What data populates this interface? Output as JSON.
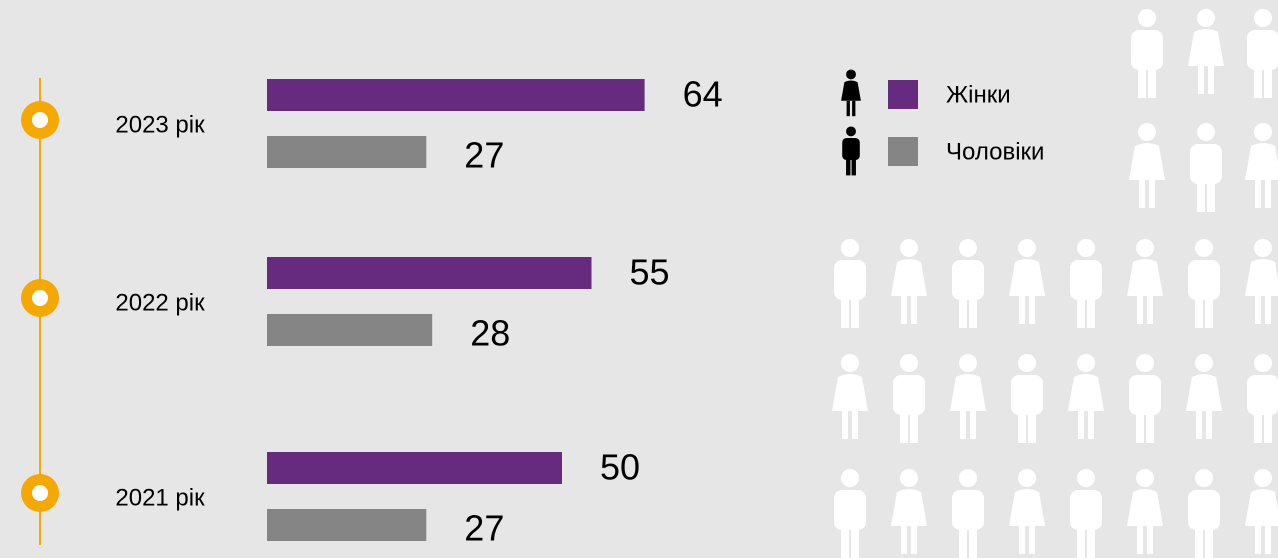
{
  "chart_data": {
    "type": "bar",
    "orientation": "horizontal",
    "categories": [
      "2023 рік",
      "2022 рік",
      "2021 рік"
    ],
    "series": [
      {
        "name": "Жінки",
        "color": "#662a7e",
        "values": [
          64,
          55,
          50
        ]
      },
      {
        "name": "Чоловіки",
        "color": "#858585",
        "values": [
          27,
          28,
          27
        ]
      }
    ]
  }
}
